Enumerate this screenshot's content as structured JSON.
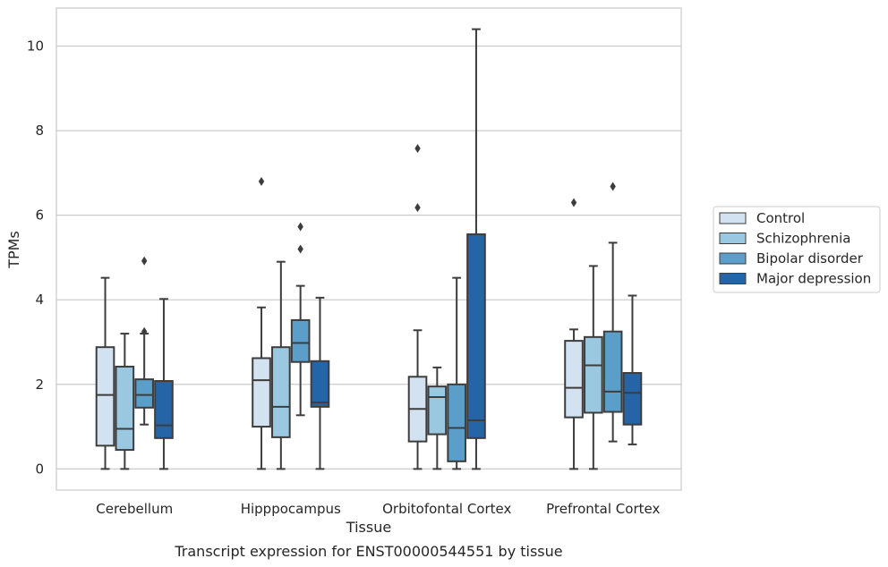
{
  "chart_data": {
    "type": "boxplot",
    "caption": "Transcript expression for ENST00000544551 by tissue",
    "xlabel": "Tissue",
    "ylabel": "TPMs",
    "ylim": [
      -0.5,
      10.9
    ],
    "yticks": [
      0,
      2,
      4,
      6,
      8,
      10
    ],
    "grid": true,
    "legend_position": "right",
    "categories": [
      "Cerebellum",
      "Hipppocampus",
      "Orbitofontal Cortex",
      "Prefrontal Cortex"
    ],
    "series": [
      {
        "name": "Control",
        "color": "#d2e2f0",
        "boxes": [
          {
            "whislo": 0,
            "q1": 0.55,
            "med": 1.75,
            "q3": 2.88,
            "whishi": 4.52,
            "fliers": []
          },
          {
            "whislo": 0,
            "q1": 1.0,
            "med": 2.1,
            "q3": 2.62,
            "whishi": 3.82,
            "fliers": [
              6.8
            ]
          },
          {
            "whislo": 0,
            "q1": 0.65,
            "med": 1.42,
            "q3": 2.18,
            "whishi": 3.28,
            "fliers": [
              6.18,
              7.58
            ]
          },
          {
            "whislo": 0,
            "q1": 1.22,
            "med": 1.92,
            "q3": 3.03,
            "whishi": 3.3,
            "fliers": [
              6.3
            ]
          }
        ]
      },
      {
        "name": "Schizophrenia",
        "color": "#9ac8e0",
        "boxes": [
          {
            "whislo": 0,
            "q1": 0.45,
            "med": 0.95,
            "q3": 2.42,
            "whishi": 3.2,
            "fliers": []
          },
          {
            "whislo": 0,
            "q1": 0.75,
            "med": 1.47,
            "q3": 2.88,
            "whishi": 4.9,
            "fliers": []
          },
          {
            "whislo": 0,
            "q1": 0.82,
            "med": 1.7,
            "q3": 1.95,
            "whishi": 2.4,
            "fliers": []
          },
          {
            "whislo": 0,
            "q1": 1.33,
            "med": 2.45,
            "q3": 3.12,
            "whishi": 4.8,
            "fliers": []
          }
        ]
      },
      {
        "name": "Bipolar disorder",
        "color": "#5a9ec9",
        "boxes": [
          {
            "whislo": 1.05,
            "q1": 1.45,
            "med": 1.75,
            "q3": 2.12,
            "whishi": 3.2,
            "fliers": [
              3.25,
              4.92
            ]
          },
          {
            "whislo": 1.27,
            "q1": 2.53,
            "med": 2.98,
            "q3": 3.52,
            "whishi": 4.33,
            "fliers": [
              5.2,
              5.73
            ]
          },
          {
            "whislo": 0,
            "q1": 0.18,
            "med": 0.97,
            "q3": 2.0,
            "whishi": 4.52,
            "fliers": []
          },
          {
            "whislo": 0.65,
            "q1": 1.35,
            "med": 1.83,
            "q3": 3.25,
            "whishi": 5.35,
            "fliers": [
              6.68
            ]
          }
        ]
      },
      {
        "name": "Major depression",
        "color": "#2565a7",
        "boxes": [
          {
            "whislo": 0,
            "q1": 0.73,
            "med": 1.03,
            "q3": 2.08,
            "whishi": 4.02,
            "fliers": []
          },
          {
            "whislo": 0,
            "q1": 1.47,
            "med": 1.57,
            "q3": 2.55,
            "whishi": 4.05,
            "fliers": []
          },
          {
            "whislo": 0,
            "q1": 0.73,
            "med": 1.15,
            "q3": 5.55,
            "whishi": 10.4,
            "fliers": []
          },
          {
            "whislo": 0.58,
            "q1": 1.05,
            "med": 1.8,
            "q3": 2.27,
            "whishi": 4.1,
            "fliers": []
          }
        ]
      }
    ]
  }
}
